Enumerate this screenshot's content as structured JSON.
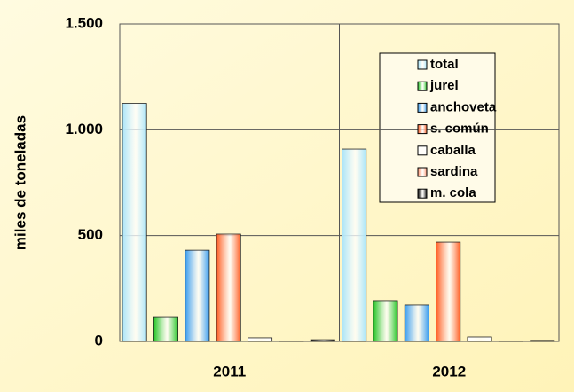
{
  "chart_data": {
    "type": "bar",
    "y_label": "miles de toneladas",
    "categories": [
      "2011",
      "2012"
    ],
    "series": [
      {
        "name": "total",
        "color": "#a8e4f8",
        "values": [
          1125,
          909
        ]
      },
      {
        "name": "jurel",
        "color": "#22c422",
        "values": [
          117,
          193
        ]
      },
      {
        "name": "anchoveta",
        "color": "#3399ee",
        "values": [
          431,
          172
        ]
      },
      {
        "name": "s. común",
        "color": "#ff5a1e",
        "values": [
          507,
          469
        ]
      },
      {
        "name": "caballa",
        "color": "#ffffff",
        "values": [
          17,
          21
        ]
      },
      {
        "name": "sardina",
        "color": "#ff9470",
        "values": [
          1,
          1
        ]
      },
      {
        "name": "m. cola",
        "color": "#000000",
        "values": [
          8,
          5
        ]
      }
    ],
    "ylim": [
      0,
      1500
    ],
    "yticks": [
      0,
      500,
      {
        "value": 1000,
        "label": "1.000"
      },
      {
        "value": 1500,
        "label": "1.500"
      }
    ],
    "grid": true
  }
}
